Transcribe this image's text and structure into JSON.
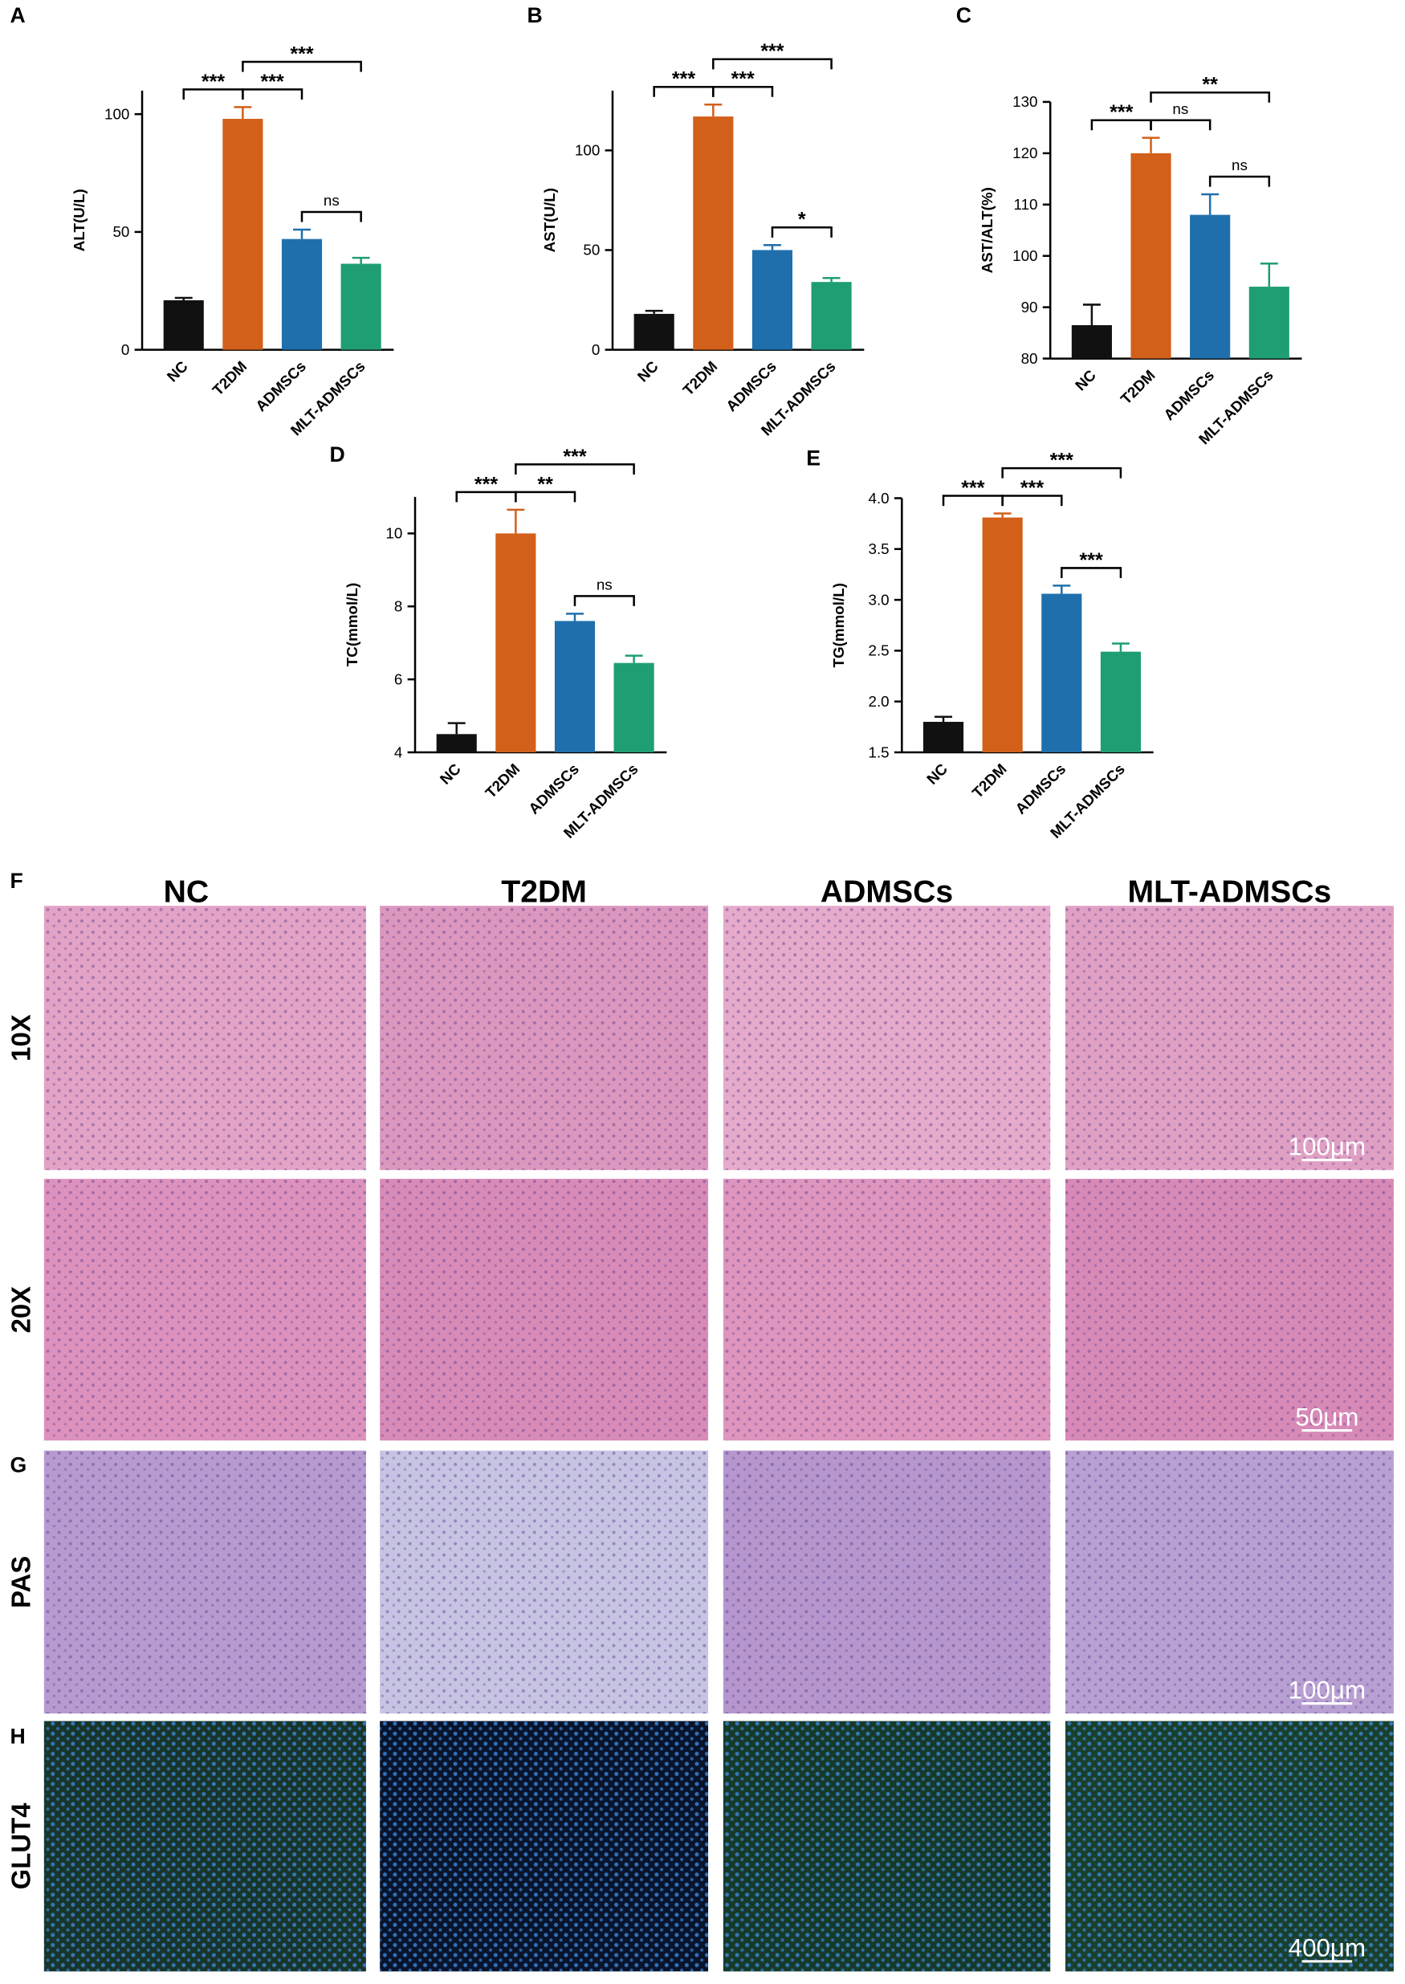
{
  "chart_data": [
    {
      "type": "bar",
      "panel": "A",
      "ylabel": "ALT(U/L)",
      "categories": [
        "NC",
        "T2DM",
        "ADMSCs",
        "MLT-ADMSCs"
      ],
      "values": [
        21,
        98,
        47,
        36.5
      ],
      "errors": [
        1,
        5,
        4,
        2.5
      ],
      "colors": [
        "#111111",
        "#d2601a",
        "#1f6fad",
        "#1f9e73"
      ],
      "ylim": [
        0,
        110
      ],
      "yticks": [
        0,
        50,
        100
      ],
      "brackets": [
        {
          "between": [
            "NC",
            "T2DM"
          ],
          "label": "***"
        },
        {
          "between": [
            "T2DM",
            "ADMSCs"
          ],
          "label": "***"
        },
        {
          "between": [
            "T2DM",
            "MLT-ADMSCs"
          ],
          "label": "***"
        },
        {
          "between": [
            "ADMSCs",
            "MLT-ADMSCs"
          ],
          "label": "ns"
        }
      ]
    },
    {
      "type": "bar",
      "panel": "B",
      "ylabel": "AST(U/L)",
      "categories": [
        "NC",
        "T2DM",
        "ADMSCs",
        "MLT-ADMSCs"
      ],
      "values": [
        18,
        117,
        50,
        34
      ],
      "errors": [
        1.5,
        6,
        2.5,
        2
      ],
      "colors": [
        "#111111",
        "#d2601a",
        "#1f6fad",
        "#1f9e73"
      ],
      "ylim": [
        0,
        130
      ],
      "yticks": [
        0,
        50,
        100
      ],
      "brackets": [
        {
          "between": [
            "NC",
            "T2DM"
          ],
          "label": "***"
        },
        {
          "between": [
            "T2DM",
            "ADMSCs"
          ],
          "label": "***"
        },
        {
          "between": [
            "T2DM",
            "MLT-ADMSCs"
          ],
          "label": "***"
        },
        {
          "between": [
            "ADMSCs",
            "MLT-ADMSCs"
          ],
          "label": "*"
        }
      ]
    },
    {
      "type": "bar",
      "panel": "C",
      "ylabel": "AST/ALT(%)",
      "categories": [
        "NC",
        "T2DM",
        "ADMSCs",
        "MLT-ADMSCs"
      ],
      "values": [
        86.5,
        120,
        108,
        94
      ],
      "errors": [
        4,
        3,
        4,
        4.5
      ],
      "colors": [
        "#111111",
        "#d2601a",
        "#1f6fad",
        "#1f9e73"
      ],
      "ylim": [
        80,
        130
      ],
      "yticks": [
        80,
        90,
        100,
        110,
        120,
        130
      ],
      "brackets": [
        {
          "between": [
            "NC",
            "T2DM"
          ],
          "label": "***"
        },
        {
          "between": [
            "T2DM",
            "ADMSCs"
          ],
          "label": "ns"
        },
        {
          "between": [
            "T2DM",
            "MLT-ADMSCs"
          ],
          "label": "**"
        },
        {
          "between": [
            "ADMSCs",
            "MLT-ADMSCs"
          ],
          "label": "ns"
        }
      ]
    },
    {
      "type": "bar",
      "panel": "D",
      "ylabel": "TC(mmol/L)",
      "categories": [
        "NC",
        "T2DM",
        "ADMSCs",
        "MLT-ADMSCs"
      ],
      "values": [
        4.5,
        10,
        7.6,
        6.45
      ],
      "errors": [
        0.3,
        0.65,
        0.2,
        0.2
      ],
      "colors": [
        "#111111",
        "#d2601a",
        "#1f6fad",
        "#1f9e73"
      ],
      "ylim": [
        4,
        11
      ],
      "yticks": [
        4,
        6,
        8,
        10
      ],
      "brackets": [
        {
          "between": [
            "NC",
            "T2DM"
          ],
          "label": "***"
        },
        {
          "between": [
            "T2DM",
            "ADMSCs"
          ],
          "label": "**"
        },
        {
          "between": [
            "T2DM",
            "MLT-ADMSCs"
          ],
          "label": "***"
        },
        {
          "between": [
            "ADMSCs",
            "MLT-ADMSCs"
          ],
          "label": "ns"
        }
      ]
    },
    {
      "type": "bar",
      "panel": "E",
      "ylabel": "TG(mmol/L)",
      "categories": [
        "NC",
        "T2DM",
        "ADMSCs",
        "MLT-ADMSCs"
      ],
      "values": [
        1.8,
        3.81,
        3.06,
        2.49
      ],
      "errors": [
        0.05,
        0.04,
        0.08,
        0.08
      ],
      "colors": [
        "#111111",
        "#d2601a",
        "#1f6fad",
        "#1f9e73"
      ],
      "ylim": [
        1.5,
        4.0
      ],
      "yticks": [
        1.5,
        {
          "value": 2,
          "label": "2.0"
        },
        2.5,
        {
          "value": 3,
          "label": "3.0"
        },
        3.5,
        {
          "value": 4,
          "label": "4.0"
        }
      ],
      "brackets": [
        {
          "between": [
            "NC",
            "T2DM"
          ],
          "label": "***"
        },
        {
          "between": [
            "T2DM",
            "ADMSCs"
          ],
          "label": "***"
        },
        {
          "between": [
            "T2DM",
            "MLT-ADMSCs"
          ],
          "label": "***"
        },
        {
          "between": [
            "ADMSCs",
            "MLT-ADMSCs"
          ],
          "label": "***"
        }
      ]
    }
  ],
  "histology": {
    "panels": [
      "F",
      "G",
      "H"
    ],
    "columns": [
      "NC",
      "T2DM",
      "ADMSCs",
      "MLT-ADMSCs"
    ],
    "rows": [
      "10X",
      "20X",
      "PAS",
      "GLUT4"
    ],
    "scale_bars": [
      "100μm",
      "50μm",
      "100μm",
      "400μm"
    ]
  }
}
